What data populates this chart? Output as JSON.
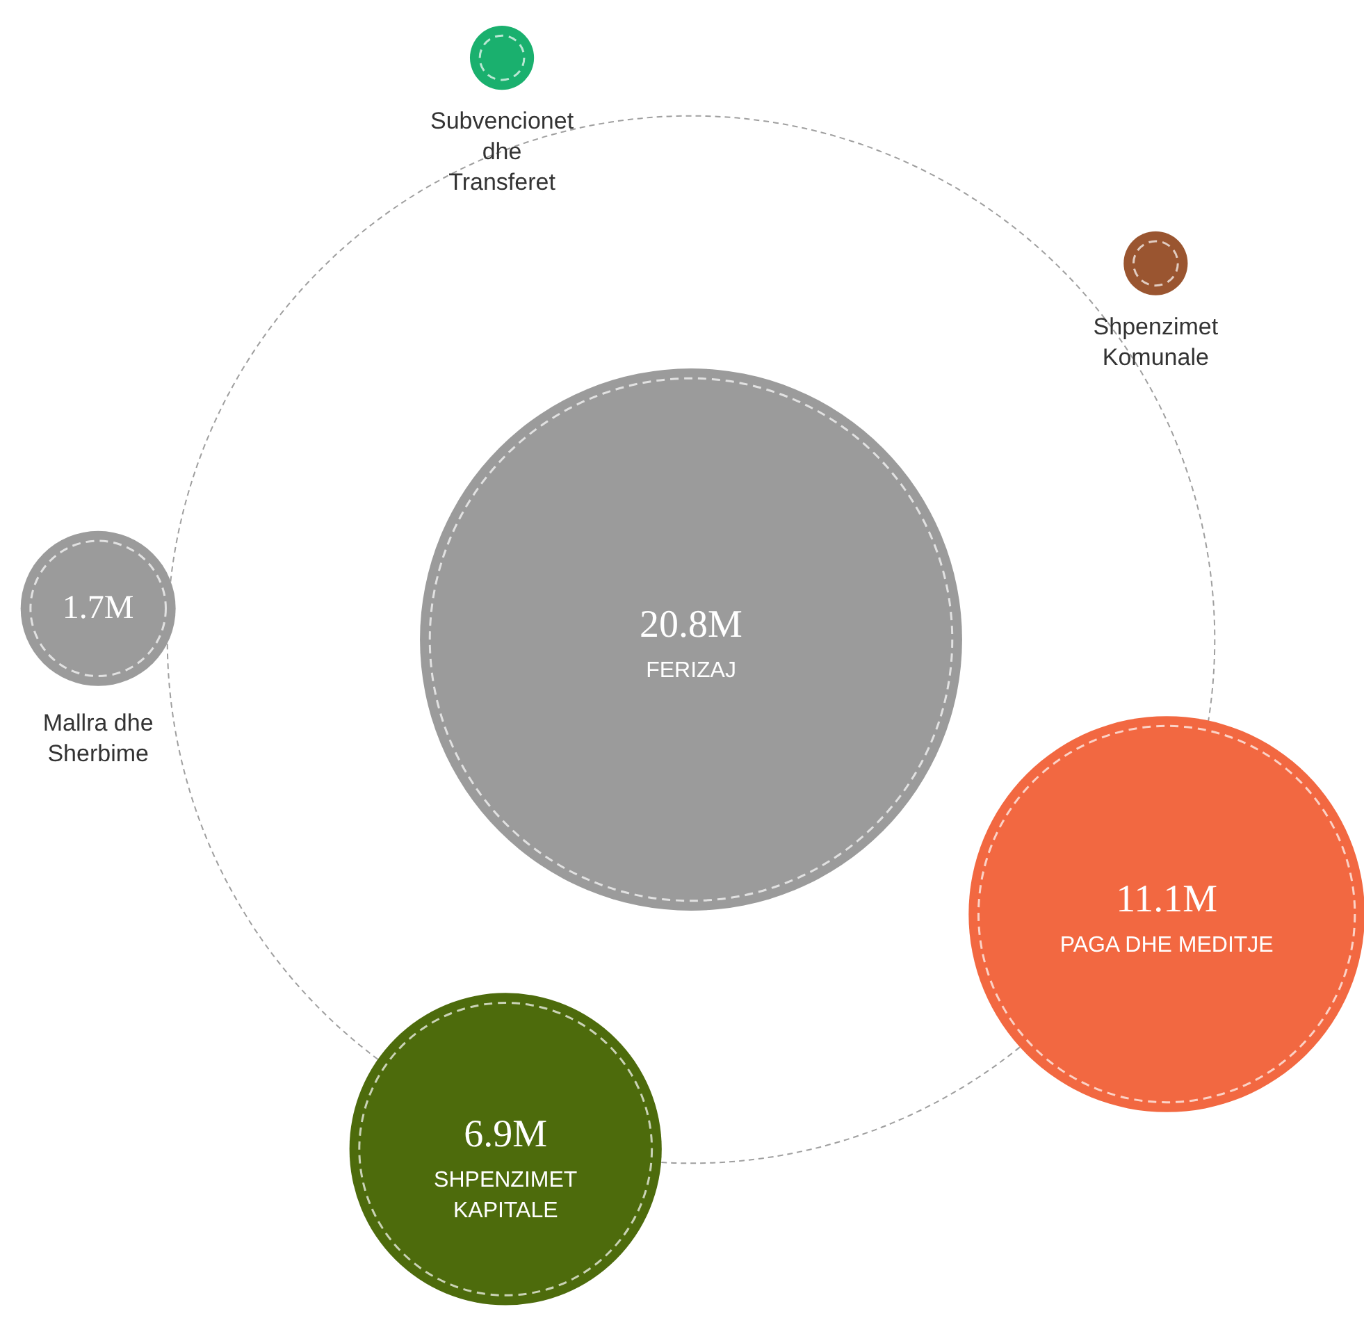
{
  "chart_data": {
    "type": "other",
    "categories": [
      "FERIZAJ",
      "PAGA DHE MEDITJE",
      "SHPENZIMET KAPITALE",
      "Mallra dhe Sherbime",
      "Subvencionet dhe Transferet",
      "Shpenzimet Komunale"
    ],
    "values": [
      20.8,
      11.1,
      6.9,
      1.7,
      null,
      null
    ],
    "value_labels": [
      "20.8M",
      "11.1M",
      "6.9M",
      "1.7M",
      null,
      null
    ],
    "colors": [
      "#9b9b9b",
      "#f26841",
      "#4d6b0c",
      "#9b9b9b",
      "#1ab06e",
      "#9a5530"
    ]
  }
}
